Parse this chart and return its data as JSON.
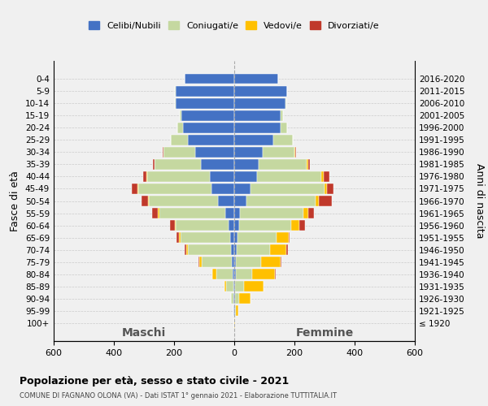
{
  "age_groups": [
    "0-4",
    "5-9",
    "10-14",
    "15-19",
    "20-24",
    "25-29",
    "30-34",
    "35-39",
    "40-44",
    "45-49",
    "50-54",
    "55-59",
    "60-64",
    "65-69",
    "70-74",
    "75-79",
    "80-84",
    "85-89",
    "90-94",
    "95-99",
    "100+"
  ],
  "birth_years": [
    "2016-2020",
    "2011-2015",
    "2006-2010",
    "2001-2005",
    "1996-2000",
    "1991-1995",
    "1986-1990",
    "1981-1985",
    "1976-1980",
    "1971-1975",
    "1966-1970",
    "1961-1965",
    "1956-1960",
    "1951-1955",
    "1946-1950",
    "1941-1945",
    "1936-1940",
    "1931-1935",
    "1926-1930",
    "1921-1925",
    "≤ 1920"
  ],
  "males": {
    "celibe": [
      165,
      195,
      195,
      175,
      170,
      155,
      130,
      110,
      80,
      75,
      55,
      30,
      20,
      14,
      10,
      7,
      5,
      3,
      2,
      2,
      0
    ],
    "coniugato": [
      0,
      2,
      2,
      5,
      18,
      55,
      105,
      155,
      210,
      245,
      230,
      220,
      175,
      165,
      145,
      100,
      55,
      25,
      8,
      2,
      0
    ],
    "vedovo": [
      0,
      0,
      0,
      0,
      0,
      0,
      0,
      0,
      2,
      2,
      2,
      3,
      3,
      5,
      5,
      8,
      12,
      5,
      2,
      0,
      0
    ],
    "divorziato": [
      0,
      0,
      0,
      0,
      0,
      0,
      3,
      5,
      12,
      18,
      20,
      20,
      15,
      8,
      5,
      3,
      0,
      0,
      0,
      0,
      0
    ]
  },
  "females": {
    "nubile": [
      145,
      175,
      170,
      155,
      155,
      130,
      95,
      80,
      75,
      55,
      40,
      20,
      15,
      10,
      8,
      5,
      5,
      3,
      3,
      2,
      0
    ],
    "coniugata": [
      0,
      2,
      2,
      8,
      22,
      65,
      105,
      160,
      215,
      245,
      230,
      210,
      175,
      130,
      110,
      85,
      55,
      30,
      12,
      3,
      0
    ],
    "vedova": [
      0,
      0,
      0,
      0,
      0,
      0,
      3,
      5,
      8,
      8,
      10,
      15,
      25,
      40,
      55,
      65,
      75,
      65,
      40,
      8,
      2
    ],
    "divorziata": [
      0,
      0,
      0,
      0,
      0,
      0,
      3,
      5,
      18,
      22,
      45,
      20,
      20,
      5,
      5,
      3,
      3,
      0,
      0,
      0,
      0
    ]
  },
  "colors": {
    "celibe": "#4472c4",
    "coniugato": "#c5d8a0",
    "vedovo": "#ffc000",
    "divorziato": "#c0392b"
  },
  "title": "Popolazione per età, sesso e stato civile - 2021",
  "subtitle": "COMUNE DI FAGNANO OLONA (VA) - Dati ISTAT 1° gennaio 2021 - Elaborazione TUTTITALIA.IT",
  "xlabel_left": "Maschi",
  "xlabel_right": "Femmine",
  "ylabel_left": "Fasce di età",
  "ylabel_right": "Anni di nascita",
  "xlim": 600,
  "legend_labels": [
    "Celibi/Nubili",
    "Coniugati/e",
    "Vedovi/e",
    "Divorziati/e"
  ],
  "bg_color": "#f0f0f0",
  "grid_color": "#cccccc"
}
